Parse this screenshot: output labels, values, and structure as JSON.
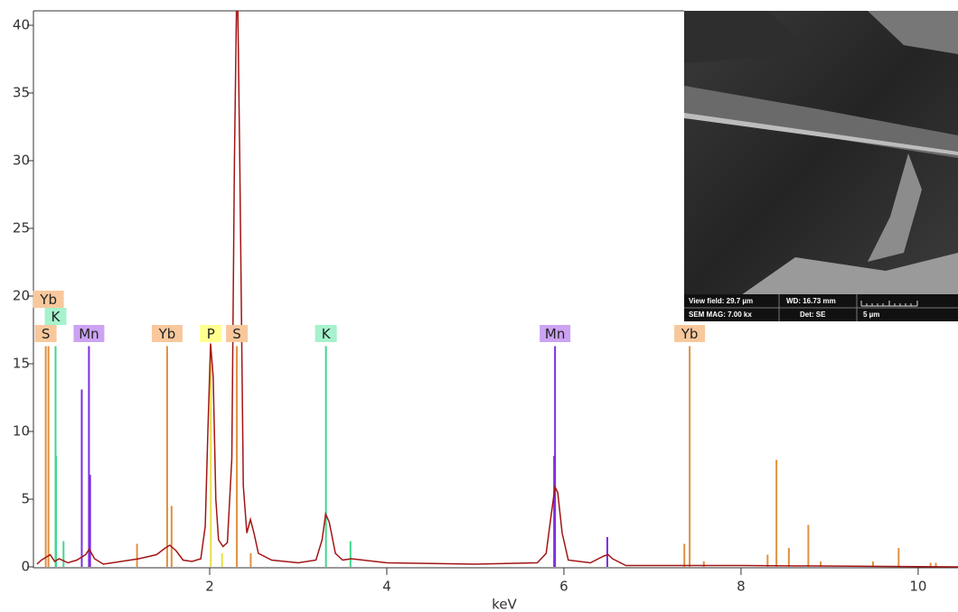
{
  "chart_data": {
    "type": "spectrum",
    "x_label": "keV",
    "xlim": [
      0,
      10.45
    ],
    "ylim": [
      0,
      41
    ],
    "xticks": [
      2,
      4,
      6,
      8,
      10
    ],
    "yticks": [
      0,
      5,
      10,
      15,
      20,
      25,
      30,
      35,
      40
    ],
    "spectrum": {
      "color": "#a31515",
      "x": [
        0.05,
        0.1,
        0.2,
        0.25,
        0.3,
        0.4,
        0.5,
        0.6,
        0.64,
        0.7,
        0.8,
        0.9,
        1.0,
        1.2,
        1.4,
        1.5,
        1.55,
        1.62,
        1.7,
        1.8,
        1.9,
        1.95,
        1.98,
        2.01,
        2.04,
        2.07,
        2.1,
        2.15,
        2.2,
        2.25,
        2.28,
        2.31,
        2.34,
        2.38,
        2.42,
        2.46,
        2.5,
        2.55,
        2.7,
        3.0,
        3.2,
        3.27,
        3.31,
        3.35,
        3.42,
        3.5,
        3.6,
        4.0,
        5.0,
        5.7,
        5.8,
        5.86,
        5.9,
        5.93,
        5.98,
        6.05,
        6.3,
        6.45,
        6.5,
        6.55,
        6.7,
        8.0,
        10.45
      ],
      "values": [
        0.2,
        0.5,
        0.9,
        0.4,
        0.6,
        0.3,
        0.5,
        0.9,
        1.3,
        0.6,
        0.2,
        0.3,
        0.4,
        0.6,
        0.9,
        1.4,
        1.6,
        1.2,
        0.5,
        0.4,
        0.6,
        3,
        10,
        16.5,
        14,
        5,
        2,
        1.5,
        1.8,
        8,
        30,
        45,
        30,
        6,
        2.5,
        3.5,
        2.5,
        1,
        0.5,
        0.3,
        0.5,
        2,
        3.9,
        3.3,
        1,
        0.5,
        0.6,
        0.3,
        0.2,
        0.3,
        1,
        4,
        5.9,
        5.5,
        2.5,
        0.5,
        0.3,
        0.8,
        0.9,
        0.6,
        0.1,
        0.1,
        0
      ]
    },
    "element_lines": [
      {
        "name": "S",
        "color": "#e0913f",
        "label_color": "#f8c89c",
        "x": [
          0.149,
          2.307,
          2.464
        ],
        "values": [
          16.3,
          16.3,
          1.0
        ]
      },
      {
        "name": "K",
        "color": "#3ed88c",
        "label_color": "#a6f2cc",
        "x": [
          0.26,
          0.265,
          0.35,
          3.313,
          3.59
        ],
        "values": [
          16.3,
          8.2,
          1.9,
          16.3,
          1.9
        ]
      },
      {
        "name": "Mn",
        "color": "#7d2ee0",
        "label_color": "#cba3f2",
        "x": [
          0.556,
          0.637,
          0.65,
          5.89,
          5.9,
          6.49
        ],
        "values": [
          13.1,
          16.3,
          6.8,
          8.2,
          16.3,
          2.2
        ]
      },
      {
        "name": "Yb",
        "color": "#e0913f",
        "label_color": "#f8c89c",
        "x": [
          0.18,
          1.18,
          1.52,
          1.57,
          7.36,
          7.42,
          7.58,
          8.3,
          8.4,
          8.54,
          8.76,
          8.9,
          9.49,
          9.78,
          10.14,
          10.2
        ],
        "values": [
          16.3,
          1.7,
          16.3,
          4.5,
          1.7,
          16.3,
          0.4,
          0.9,
          7.9,
          1.4,
          3.1,
          0.4,
          0.4,
          1.4,
          0.3,
          0.3
        ]
      },
      {
        "name": "P",
        "color": "#e8e044",
        "label_color": "#ffff8e",
        "x": [
          2.013,
          2.14
        ],
        "values": [
          16.3,
          1.0
        ]
      }
    ]
  },
  "inset": {
    "view_field": "View field: 29.7 µm",
    "wd": "WD: 16.73 mm",
    "mag": "SEM MAG: 7.00 kx",
    "det": "Det: SE",
    "scale": "5 µm"
  }
}
